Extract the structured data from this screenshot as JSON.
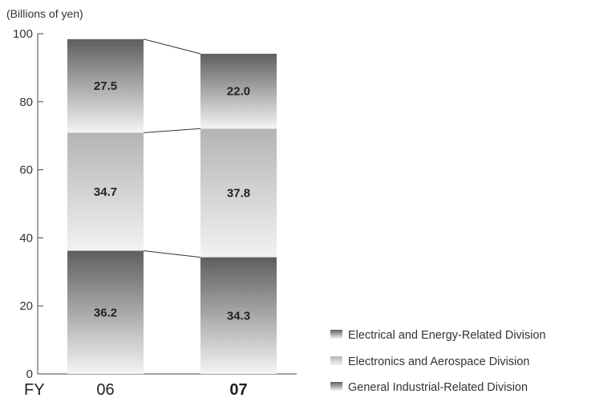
{
  "chart_data": {
    "type": "bar",
    "stacked": true,
    "unit_label": "(Billions of yen)",
    "xprefix": "FY",
    "categories": [
      "06",
      "07"
    ],
    "category_bold": [
      false,
      true
    ],
    "ylim": [
      0,
      100
    ],
    "yticks": [
      0,
      20,
      40,
      60,
      80,
      100
    ],
    "grid": false,
    "legend_position": "bottom-right",
    "series": [
      {
        "name": "General Industrial-Related Division",
        "values": [
          36.2,
          34.3
        ],
        "color": "#666666"
      },
      {
        "name": "Electronics and Aerospace Division",
        "values": [
          34.7,
          37.8
        ],
        "color": "#bdbdbd"
      },
      {
        "name": "Electrical and Energy-Related Division",
        "values": [
          27.5,
          22.0
        ],
        "color": "#666666"
      }
    ],
    "legend_order": [
      "Electrical and Energy-Related Division",
      "Electronics and Aerospace Division",
      "General Industrial-Related Division"
    ]
  }
}
